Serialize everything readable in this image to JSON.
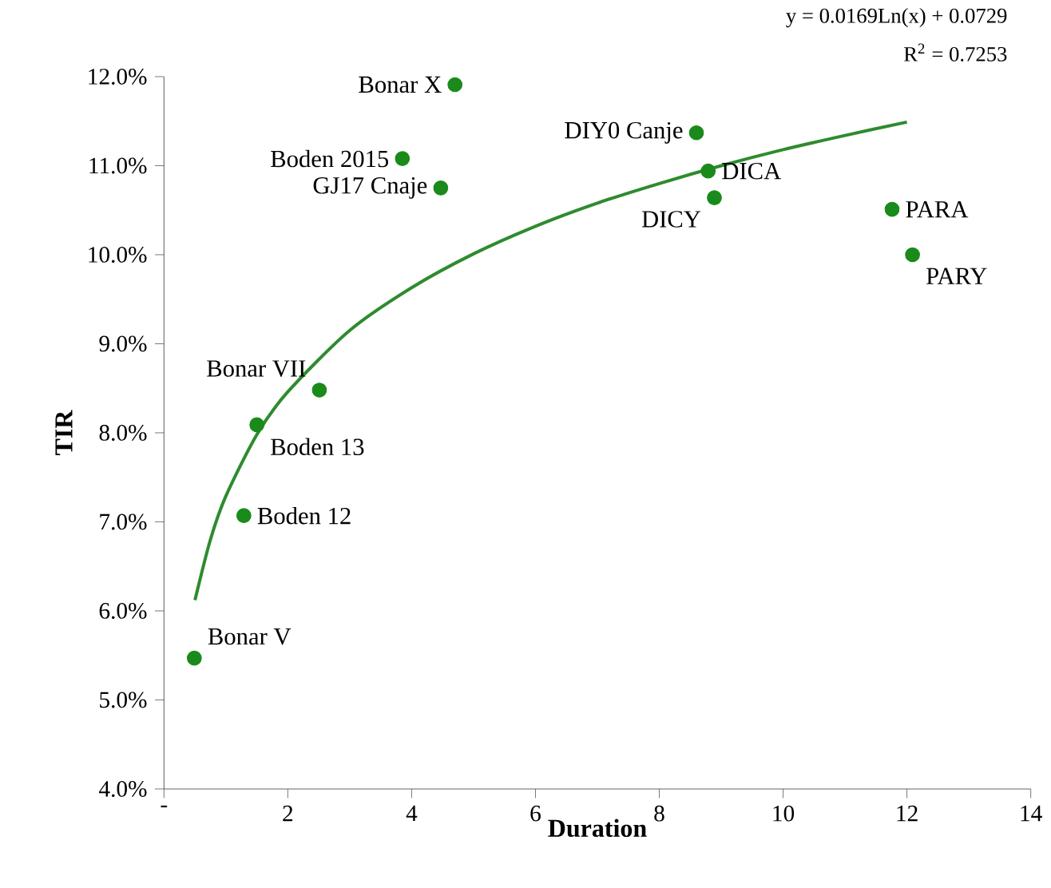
{
  "chart_data": {
    "type": "scatter",
    "xlabel": "Duration",
    "ylabel": "TIR",
    "xlim": [
      0,
      14
    ],
    "ylim": [
      4,
      12
    ],
    "xticks": [
      {
        "value": 0,
        "label": "-"
      },
      2,
      4,
      6,
      8,
      10,
      12,
      14
    ],
    "yticks": [
      {
        "value": 4,
        "label": "4.0%"
      },
      {
        "value": 5,
        "label": "5.0%"
      },
      {
        "value": 6,
        "label": "6.0%"
      },
      {
        "value": 7,
        "label": "7.0%"
      },
      {
        "value": 8,
        "label": "8.0%"
      },
      {
        "value": 9,
        "label": "9.0%"
      },
      {
        "value": 10,
        "label": "10.0%"
      },
      {
        "value": 11,
        "label": "11.0%"
      },
      {
        "value": 12,
        "label": "12.0%"
      }
    ],
    "grid": false,
    "series": [
      {
        "color": "#1a8a1a",
        "marker": "circle",
        "x": [
          4.7,
          3.85,
          4.47,
          8.6,
          8.79,
          8.89,
          11.76,
          12.09,
          2.51,
          1.5,
          1.29,
          0.49
        ],
        "values": [
          11.91,
          11.08,
          10.75,
          11.37,
          10.94,
          10.64,
          10.51,
          10.0,
          8.48,
          8.09,
          7.07,
          5.47
        ]
      },
      {
        "type": "line",
        "color": "#2e8b2e",
        "line_style": "solid",
        "marker": "none",
        "x": [
          0.5,
          0.75,
          1,
          1.5,
          2,
          3,
          4,
          5,
          6,
          7,
          8,
          9,
          10,
          11,
          12
        ],
        "values": [
          6.12,
          6.8,
          7.29,
          7.98,
          8.46,
          9.15,
          9.63,
          10.01,
          10.32,
          10.58,
          10.8,
          11.0,
          11.18,
          11.34,
          11.49
        ]
      }
    ],
    "annotations": [
      {
        "text": "Bonar X",
        "x": 4.7,
        "y": 11.91
      },
      {
        "text": "Boden 2015",
        "x": 3.85,
        "y": 11.08
      },
      {
        "text": "GJ17 Cnaje",
        "x": 4.47,
        "y": 10.75
      },
      {
        "text": "DIY0 Canje",
        "x": 8.6,
        "y": 11.37
      },
      {
        "text": "DICA",
        "x": 8.79,
        "y": 10.94
      },
      {
        "text": "DICY",
        "x": 8.89,
        "y": 10.64
      },
      {
        "text": "PARA",
        "x": 11.76,
        "y": 10.51
      },
      {
        "text": "PARY",
        "x": 12.09,
        "y": 10.0
      },
      {
        "text": "Bonar VII",
        "x": 2.51,
        "y": 8.48
      },
      {
        "text": "Boden 13",
        "x": 1.5,
        "y": 8.09
      },
      {
        "text": "Boden 12",
        "x": 1.29,
        "y": 7.07
      },
      {
        "text": "Bonar V",
        "x": 0.49,
        "y": 5.47
      },
      "y = 0.0169Ln(x) + 0.0729",
      "R$^{2}$ = 0.7253"
    ]
  }
}
